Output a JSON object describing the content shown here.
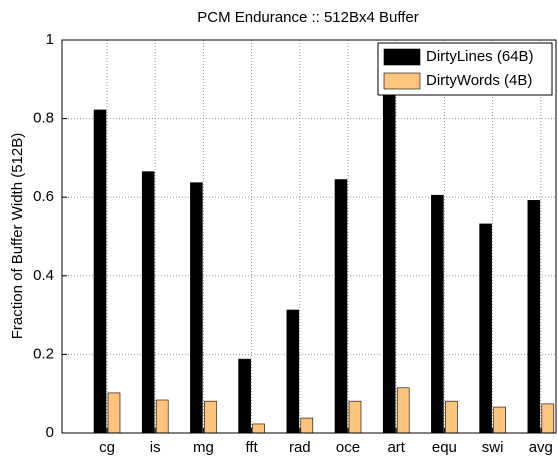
{
  "chart_data": {
    "type": "bar",
    "title": "PCM Endurance :: 512Bx4 Buffer",
    "y_label": "Fraction of Buffer Width (512B)",
    "categories": [
      "cg",
      "is",
      "mg",
      "fft",
      "rad",
      "oce",
      "art",
      "equ",
      "swi",
      "avg"
    ],
    "series": [
      {
        "name": "DirtyLines (64B)",
        "color": "#000000",
        "values": [
          0.822,
          0.665,
          0.637,
          0.188,
          0.313,
          0.645,
          0.931,
          0.605,
          0.532,
          0.592
        ]
      },
      {
        "name": "DirtyWords (4B)",
        "color": "#fdc47e",
        "values": [
          0.102,
          0.084,
          0.081,
          0.023,
          0.038,
          0.081,
          0.115,
          0.081,
          0.066,
          0.074
        ]
      }
    ],
    "ylim": [
      0,
      1
    ],
    "yticks": [
      0,
      0.2,
      0.4,
      0.6,
      0.8,
      1
    ],
    "grid": true,
    "legend": "upper right"
  }
}
